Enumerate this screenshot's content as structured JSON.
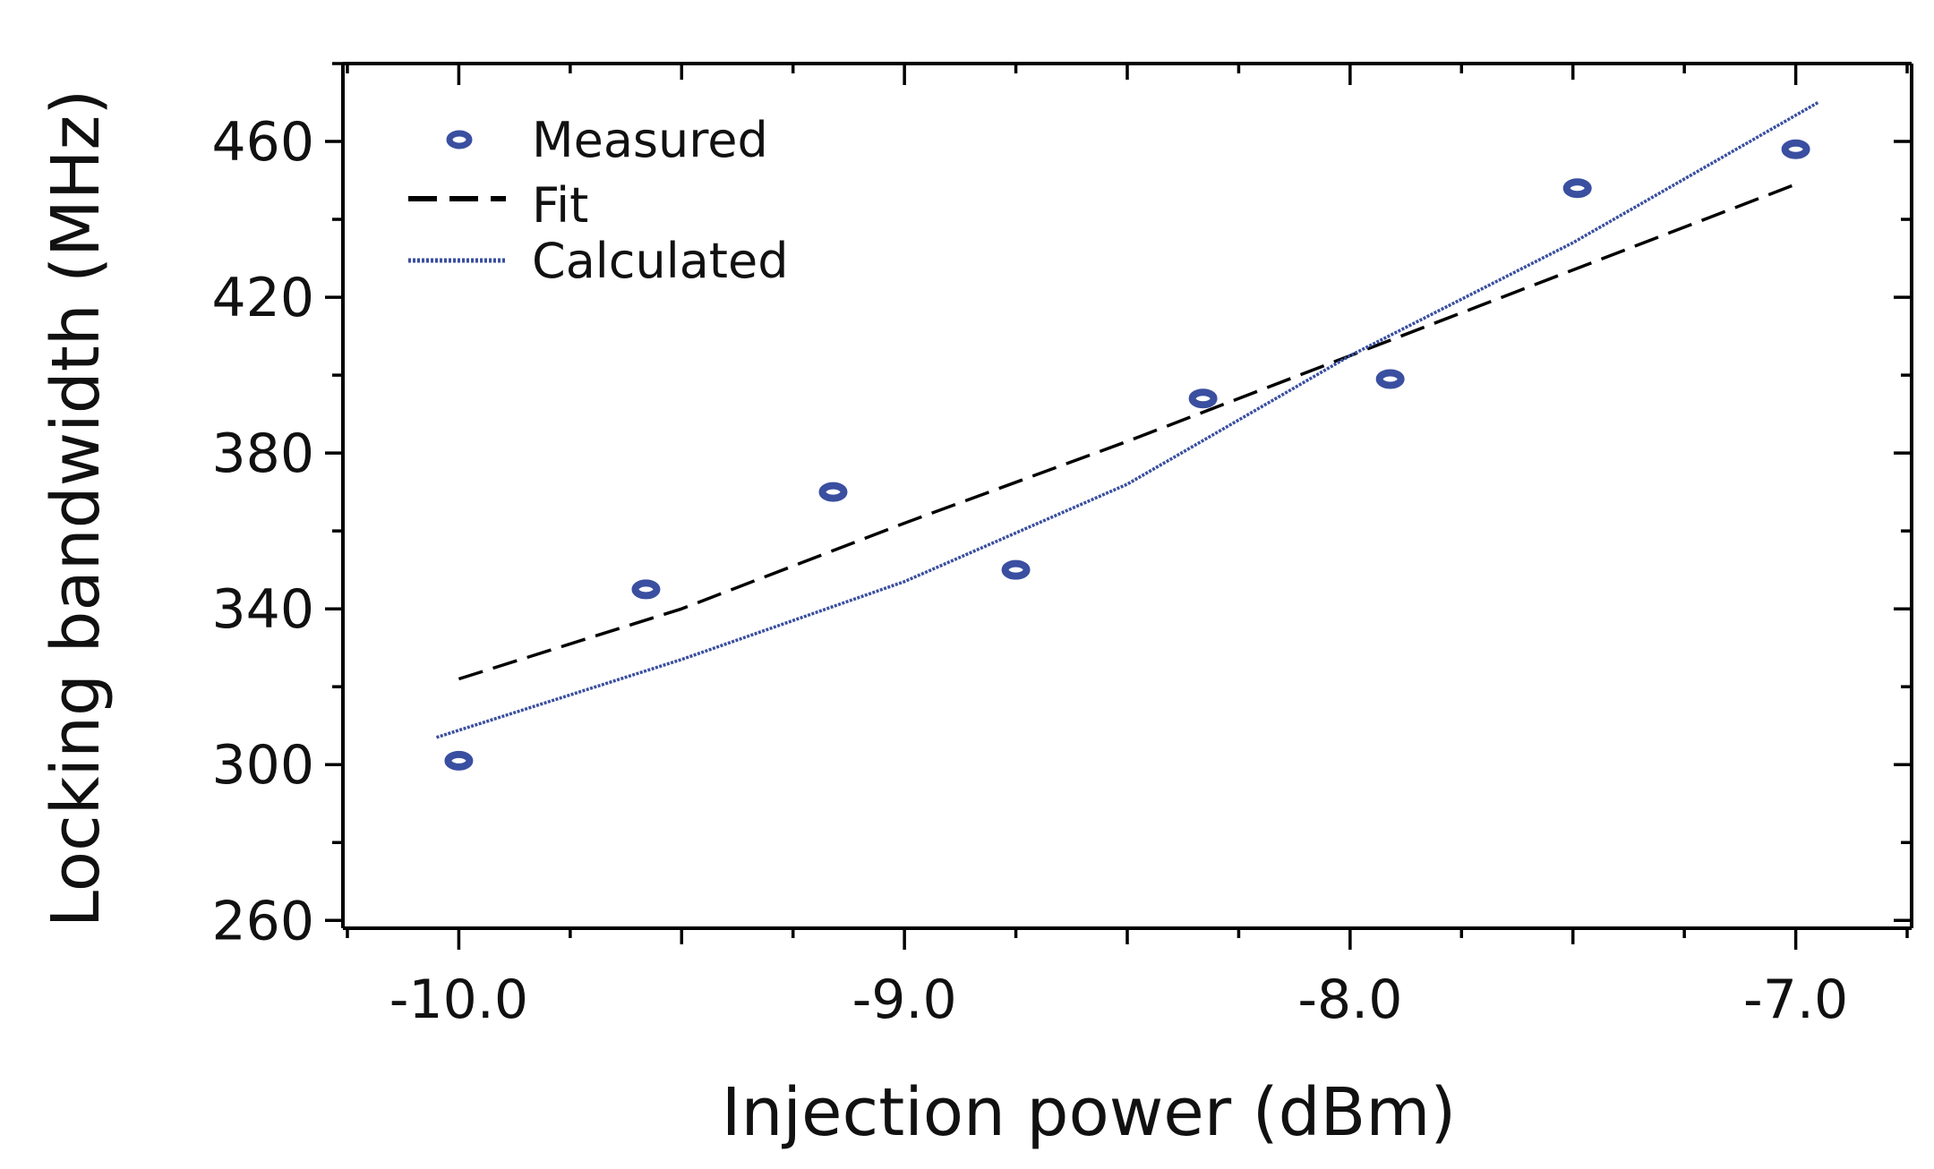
{
  "chart_data": {
    "type": "line",
    "xlabel": "Injection power (dBm)",
    "ylabel": "Locking bandwidth (MHz)",
    "xlim": [
      -10.26,
      -6.74
    ],
    "ylim": [
      258,
      480
    ],
    "xticks": [
      -10.0,
      -9.0,
      -8.0,
      -7.0
    ],
    "xtick_labels": [
      "-10.0",
      "-9.0",
      "-8.0",
      "-7.0"
    ],
    "yticks": [
      260,
      300,
      340,
      380,
      420,
      460
    ],
    "ytick_labels": [
      "260",
      "300",
      "340",
      "380",
      "420",
      "460"
    ],
    "legend_position": "top-left",
    "series": [
      {
        "name": "Measured",
        "kind": "scatter",
        "color": "#3a4fa0",
        "x": [
          -10.0,
          -9.58,
          -9.16,
          -8.75,
          -8.33,
          -7.91,
          -7.49,
          -7.0
        ],
        "y": [
          301,
          345,
          370,
          350,
          394,
          399,
          448,
          458
        ]
      },
      {
        "name": "Fit",
        "kind": "line",
        "style": "dashed",
        "color": "#000000",
        "x": [
          -10.0,
          -9.5,
          -9.0,
          -8.5,
          -8.0,
          -7.5,
          -7.0
        ],
        "y": [
          322,
          340,
          362,
          383,
          405,
          427,
          449
        ]
      },
      {
        "name": "Calculated",
        "kind": "line",
        "style": "dotted",
        "color": "#3a4fa0",
        "x": [
          -10.05,
          -9.5,
          -9.0,
          -8.5,
          -8.0,
          -7.5,
          -6.95
        ],
        "y": [
          307,
          327,
          347,
          372,
          405,
          434,
          470
        ]
      }
    ]
  }
}
